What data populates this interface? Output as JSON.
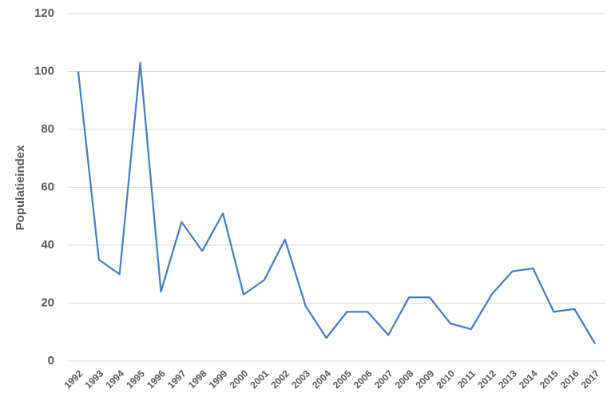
{
  "chart_data": {
    "type": "line",
    "y_label": "Populatieindex",
    "categories": [
      "1992",
      "1993",
      "1994",
      "1995",
      "1996",
      "1997",
      "1998",
      "1999",
      "2000",
      "2001",
      "2002",
      "2003",
      "2004",
      "2005",
      "2006",
      "2007",
      "2008",
      "2009",
      "2010",
      "2011",
      "2012",
      "2013",
      "2014",
      "2015",
      "2016",
      "2017"
    ],
    "series": [
      {
        "name": "Populatieindex",
        "color": "#4a7ebb",
        "values": [
          100,
          35,
          30,
          103,
          24,
          48,
          38,
          51,
          23,
          28,
          42,
          19,
          8,
          17,
          17,
          9,
          22,
          22,
          13,
          11,
          23,
          31,
          32,
          17,
          18,
          6
        ]
      }
    ],
    "ylim": [
      0,
      120
    ],
    "yticks": [
      0,
      20,
      40,
      60,
      80,
      100,
      120
    ],
    "grid": true
  }
}
